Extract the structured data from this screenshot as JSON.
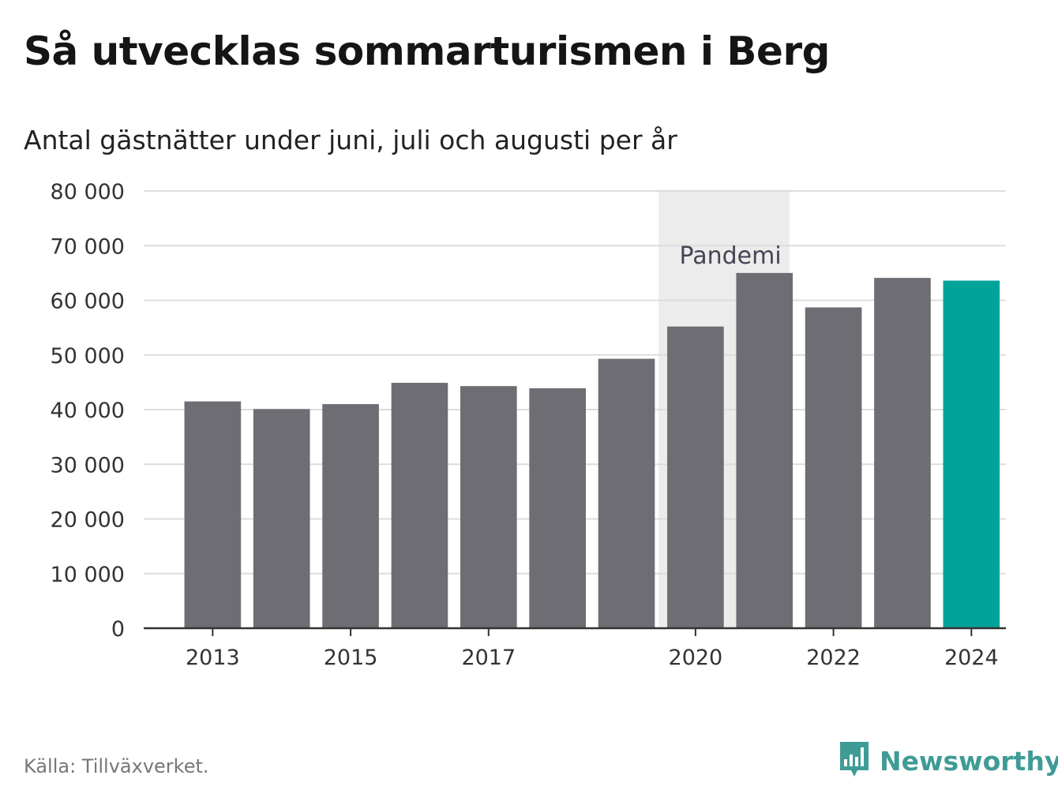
{
  "header": {
    "title": "Så utvecklas sommarturismen i Berg",
    "subtitle": "Antal gästnätter under juni, juli och augusti per år"
  },
  "footer": {
    "source": "Källa: Tillväxverket.",
    "brand": "Newsworthy"
  },
  "colors": {
    "bar": "#6e6d73",
    "highlight": "#00a39a",
    "band": "#ececec",
    "grid": "#dddddd",
    "axis": "#333333",
    "brand": "#3f9b96"
  },
  "chart_data": {
    "type": "bar",
    "categories": [
      "2013",
      "2014",
      "2015",
      "2016",
      "2017",
      "2018",
      "2019",
      "2020",
      "2021",
      "2022",
      "2023",
      "2024"
    ],
    "values": [
      41500,
      40100,
      41000,
      44900,
      44300,
      43900,
      49300,
      55200,
      65000,
      58700,
      64100,
      63600
    ],
    "highlight_category": "2024",
    "x_tick_labels": [
      "2013",
      "2015",
      "2017",
      "2020",
      "2022",
      "2024"
    ],
    "y_ticks": [
      0,
      10000,
      20000,
      30000,
      40000,
      50000,
      60000,
      70000,
      80000
    ],
    "y_tick_labels": [
      "0",
      "10 000",
      "20 000",
      "30 000",
      "40 000",
      "50 000",
      "60 000",
      "70 000",
      "80 000"
    ],
    "ylim": [
      0,
      80000
    ],
    "grid": true,
    "annotation": {
      "label": "Pandemi",
      "from": "2020",
      "to": "2021"
    },
    "xlabel": "",
    "ylabel": ""
  }
}
